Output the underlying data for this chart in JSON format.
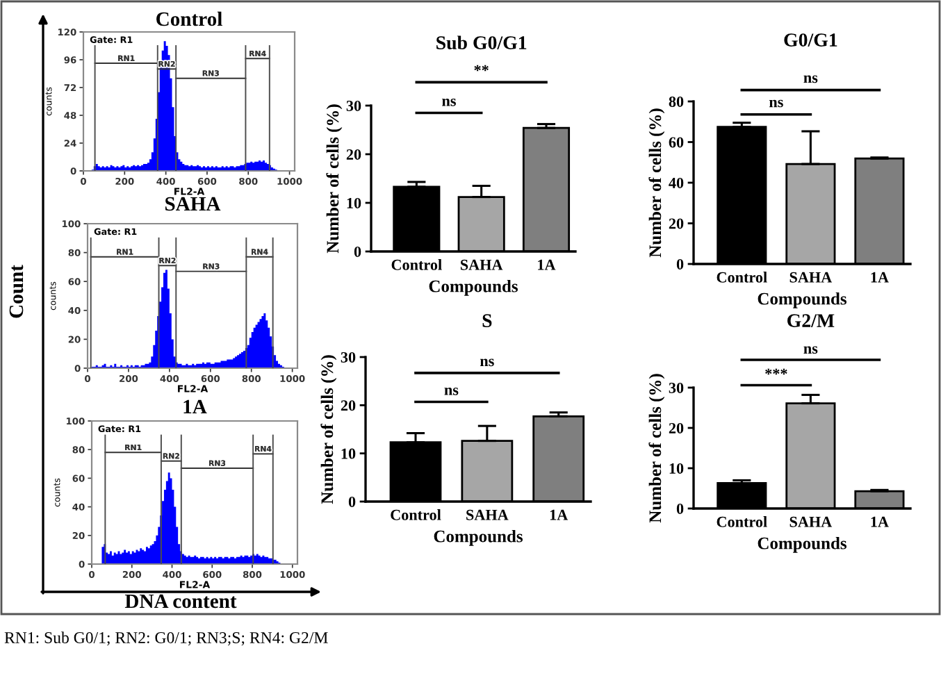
{
  "chart_data": [
    {
      "type": "histogram",
      "title": "Control",
      "xlabel": "FL2-A",
      "ylabel": "counts",
      "bins": [
        0,
        10,
        20,
        30,
        40,
        50,
        60,
        70,
        80,
        90,
        100,
        110,
        120,
        130,
        140,
        150,
        160,
        170,
        180,
        190,
        200,
        210,
        220,
        230,
        240,
        250,
        260,
        270,
        280,
        290,
        300,
        310,
        320,
        330,
        340,
        350,
        360,
        370,
        380,
        390,
        400,
        410,
        420,
        430,
        440,
        450,
        460,
        470,
        480,
        490,
        500,
        510,
        520,
        530,
        540,
        550,
        560,
        570,
        580,
        590,
        600,
        610,
        620,
        630,
        640,
        650,
        660,
        670,
        680,
        690,
        700,
        710,
        720,
        730,
        740,
        750,
        760,
        770,
        780,
        790,
        800,
        810,
        820,
        830,
        840,
        850,
        860,
        870,
        880,
        890,
        900,
        910,
        920,
        930,
        940,
        950,
        960,
        970,
        980,
        990,
        1000
      ],
      "series": [
        {
          "color": "#0000ff",
          "values": [
            0,
            0,
            0,
            0,
            1,
            4,
            6,
            4,
            3,
            4,
            3,
            4,
            3,
            5,
            4,
            3,
            4,
            3,
            4,
            5,
            3,
            4,
            3,
            4,
            5,
            4,
            5,
            4,
            5,
            6,
            6,
            7,
            10,
            16,
            28,
            45,
            68,
            90,
            104,
            112,
            108,
            100,
            80,
            55,
            30,
            16,
            10,
            8,
            6,
            5,
            5,
            4,
            5,
            4,
            4,
            5,
            4,
            3,
            4,
            3,
            4,
            3,
            4,
            3,
            4,
            3,
            3,
            4,
            3,
            4,
            3,
            4,
            4,
            3,
            4,
            4,
            5,
            5,
            6,
            7,
            7,
            8,
            7,
            8,
            8,
            9,
            8,
            9,
            7,
            6,
            5,
            3,
            2,
            1,
            0,
            0,
            0,
            0,
            0,
            0
          ]
        },
        {
          "type": "line",
          "name": "RN1",
          "color": "#333333",
          "x": [
            56,
            360
          ],
          "values": [
            93,
            93
          ]
        },
        {
          "type": "line",
          "name": "RN2",
          "color": "#333333",
          "x": [
            360,
            449
          ],
          "values": [
            88,
            88
          ]
        },
        {
          "type": "line",
          "name": "RN3",
          "color": "#333333",
          "x": [
            449,
            787
          ],
          "values": [
            80,
            80
          ]
        },
        {
          "type": "line",
          "name": "RN4",
          "color": "#333333",
          "x": [
            787,
            903
          ],
          "values": [
            97,
            97
          ]
        }
      ],
      "xlim": [
        0,
        1025
      ],
      "xticks": [
        0,
        200,
        400,
        600,
        800,
        1000
      ],
      "ylim": [
        0,
        120
      ],
      "yticks": [
        0,
        24,
        48,
        72,
        96,
        120
      ],
      "ref_lines": [
        {
          "axis": "x",
          "value": 56
        },
        {
          "axis": "x",
          "value": 360
        },
        {
          "axis": "x",
          "value": 449
        },
        {
          "axis": "x",
          "value": 787
        },
        {
          "axis": "x",
          "value": 903
        }
      ],
      "annotations": [
        "Gate: R1"
      ]
    },
    {
      "type": "histogram",
      "title": "SAHA",
      "xlabel": "FL2-A",
      "ylabel": "counts",
      "bins": [
        0,
        10,
        20,
        30,
        40,
        50,
        60,
        70,
        80,
        90,
        100,
        110,
        120,
        130,
        140,
        150,
        160,
        170,
        180,
        190,
        200,
        210,
        220,
        230,
        240,
        250,
        260,
        270,
        280,
        290,
        300,
        310,
        320,
        330,
        340,
        350,
        360,
        370,
        380,
        390,
        400,
        410,
        420,
        430,
        440,
        450,
        460,
        470,
        480,
        490,
        500,
        510,
        520,
        530,
        540,
        550,
        560,
        570,
        580,
        590,
        600,
        610,
        620,
        630,
        640,
        650,
        660,
        670,
        680,
        690,
        700,
        710,
        720,
        730,
        740,
        750,
        760,
        770,
        780,
        790,
        800,
        810,
        820,
        830,
        840,
        850,
        860,
        870,
        880,
        890,
        900,
        910,
        920,
        930,
        940,
        950,
        960,
        970,
        980,
        990,
        1000
      ],
      "series": [
        {
          "color": "#0000ff",
          "values": [
            0,
            0,
            1,
            1,
            2,
            1,
            1,
            2,
            3,
            1,
            1,
            2,
            1,
            3,
            1,
            1,
            2,
            1,
            1,
            2,
            1,
            2,
            1,
            2,
            2,
            1,
            2,
            2,
            3,
            3,
            4,
            8,
            16,
            26,
            36,
            46,
            56,
            66,
            68,
            55,
            38,
            20,
            8,
            4,
            3,
            3,
            2,
            2,
            3,
            2,
            2,
            3,
            2,
            3,
            3,
            3,
            4,
            3,
            4,
            4,
            3,
            3,
            4,
            4,
            4,
            5,
            5,
            5,
            6,
            6,
            6,
            7,
            8,
            9,
            10,
            11,
            12,
            14,
            16,
            21,
            25,
            28,
            30,
            32,
            34,
            36,
            38,
            33,
            28,
            22,
            15,
            9,
            5,
            3,
            2,
            1,
            0,
            0,
            0,
            0
          ]
        },
        {
          "type": "line",
          "name": "RN1",
          "color": "#333333",
          "x": [
            16,
            348
          ],
          "values": [
            77,
            77
          ]
        },
        {
          "type": "line",
          "name": "RN2",
          "color": "#333333",
          "x": [
            348,
            432
          ],
          "values": [
            71,
            71
          ]
        },
        {
          "type": "line",
          "name": "RN3",
          "color": "#333333",
          "x": [
            432,
            775
          ],
          "values": [
            67,
            67
          ]
        },
        {
          "type": "line",
          "name": "RN4",
          "color": "#333333",
          "x": [
            775,
            905
          ],
          "values": [
            77,
            77
          ]
        }
      ],
      "xlim": [
        0,
        1025
      ],
      "xticks": [
        0,
        200,
        400,
        600,
        800,
        1000
      ],
      "ylim": [
        0,
        100
      ],
      "yticks": [
        0,
        20,
        40,
        60,
        80,
        100
      ],
      "ref_lines": [
        {
          "axis": "x",
          "value": 16
        },
        {
          "axis": "x",
          "value": 348
        },
        {
          "axis": "x",
          "value": 432
        },
        {
          "axis": "x",
          "value": 775
        },
        {
          "axis": "x",
          "value": 905
        }
      ],
      "annotations": [
        "Gate: R1"
      ]
    },
    {
      "type": "histogram",
      "title": "1A",
      "xlabel": "FL2-A",
      "ylabel": "counts",
      "bins": [
        0,
        10,
        20,
        30,
        40,
        50,
        60,
        70,
        80,
        90,
        100,
        110,
        120,
        130,
        140,
        150,
        160,
        170,
        180,
        190,
        200,
        210,
        220,
        230,
        240,
        250,
        260,
        270,
        280,
        290,
        300,
        310,
        320,
        330,
        340,
        350,
        360,
        370,
        380,
        390,
        400,
        410,
        420,
        430,
        440,
        450,
        460,
        470,
        480,
        490,
        500,
        510,
        520,
        530,
        540,
        550,
        560,
        570,
        580,
        590,
        600,
        610,
        620,
        630,
        640,
        650,
        660,
        670,
        680,
        690,
        700,
        710,
        720,
        730,
        740,
        750,
        760,
        770,
        780,
        790,
        800,
        810,
        820,
        830,
        840,
        850,
        860,
        870,
        880,
        890,
        900,
        910,
        920,
        930,
        940,
        950,
        960,
        970,
        980,
        990,
        1000
      ],
      "series": [
        {
          "color": "#0000ff",
          "values": [
            0,
            0,
            0,
            0,
            0,
            12,
            14,
            8,
            7,
            9,
            6,
            8,
            7,
            9,
            7,
            8,
            10,
            8,
            9,
            7,
            9,
            8,
            10,
            9,
            11,
            10,
            9,
            12,
            11,
            13,
            14,
            16,
            20,
            26,
            34,
            44,
            52,
            58,
            64,
            60,
            52,
            40,
            26,
            14,
            9,
            7,
            6,
            5,
            6,
            5,
            5,
            6,
            5,
            4,
            5,
            5,
            4,
            5,
            4,
            5,
            4,
            5,
            4,
            5,
            5,
            4,
            5,
            5,
            4,
            5,
            5,
            4,
            5,
            5,
            6,
            5,
            6,
            6,
            5,
            6,
            7,
            6,
            7,
            6,
            5,
            6,
            5,
            5,
            4,
            4,
            3,
            3,
            2,
            1,
            0,
            0,
            0,
            0,
            0,
            0
          ]
        },
        {
          "type": "line",
          "name": "RN1",
          "color": "#333333",
          "x": [
            67,
            346
          ],
          "values": [
            78,
            78
          ]
        },
        {
          "type": "line",
          "name": "RN2",
          "color": "#333333",
          "x": [
            346,
            446
          ],
          "values": [
            72,
            72
          ]
        },
        {
          "type": "line",
          "name": "RN3",
          "color": "#333333",
          "x": [
            446,
            804
          ],
          "values": [
            67,
            67
          ]
        },
        {
          "type": "line",
          "name": "RN4",
          "color": "#333333",
          "x": [
            804,
            903
          ],
          "values": [
            77,
            77
          ]
        }
      ],
      "xlim": [
        0,
        1025
      ],
      "xticks": [
        0,
        200,
        400,
        600,
        800,
        1000
      ],
      "ylim": [
        0,
        100
      ],
      "yticks": [
        0,
        20,
        40,
        60,
        80,
        100
      ],
      "ref_lines": [
        {
          "axis": "x",
          "value": 67
        },
        {
          "axis": "x",
          "value": 346
        },
        {
          "axis": "x",
          "value": 446
        },
        {
          "axis": "x",
          "value": 804
        },
        {
          "axis": "x",
          "value": 903
        }
      ],
      "annotations": [
        "Gate: R1"
      ]
    },
    {
      "type": "bar",
      "title": "Sub G0/G1",
      "xlabel": "Compounds",
      "ylabel": "Number of cells (%)",
      "categories": [
        "Control",
        "SAHA",
        "1A"
      ],
      "values": [
        13.3,
        11.2,
        25.4
      ],
      "colors": [
        "#000000",
        "#a6a6a6",
        "#7f7f7f"
      ],
      "errors": [
        [
          13.3,
          14.3
        ],
        [
          11.2,
          13.5
        ],
        [
          25.4,
          26.2
        ]
      ],
      "ylim": [
        0,
        30
      ],
      "yticks": [
        0,
        10,
        20,
        30
      ],
      "annotations": [
        "ns",
        "**"
      ]
    },
    {
      "type": "bar",
      "title": "G0/G1",
      "xlabel": "Compounds",
      "ylabel": "Number of cells (%)",
      "categories": [
        "Control",
        "SAHA",
        "1A"
      ],
      "values": [
        67.5,
        49.2,
        51.9
      ],
      "colors": [
        "#000000",
        "#a6a6a6",
        "#7f7f7f"
      ],
      "errors": [
        [
          67.5,
          69.5
        ],
        [
          49.2,
          65.3
        ],
        [
          51.9,
          52.4
        ]
      ],
      "ylim": [
        0,
        80
      ],
      "yticks": [
        0,
        20,
        40,
        60,
        80
      ],
      "annotations": [
        "ns",
        "ns"
      ]
    },
    {
      "type": "bar",
      "title": "S",
      "xlabel": "Compounds",
      "ylabel": "Number of cells (%)",
      "categories": [
        "Control",
        "SAHA",
        "1A"
      ],
      "values": [
        12.3,
        12.6,
        17.7
      ],
      "colors": [
        "#000000",
        "#a6a6a6",
        "#7f7f7f"
      ],
      "errors": [
        [
          12.3,
          14.2
        ],
        [
          12.6,
          15.7
        ],
        [
          17.7,
          18.5
        ]
      ],
      "ylim": [
        0,
        30
      ],
      "yticks": [
        0,
        10,
        20,
        30
      ],
      "annotations": [
        "ns",
        "ns"
      ]
    },
    {
      "type": "bar",
      "title": "G2/M",
      "xlabel": "Compounds",
      "ylabel": "Number of cells (%)",
      "categories": [
        "Control",
        "SAHA",
        "1A"
      ],
      "values": [
        6.3,
        26.1,
        4.3
      ],
      "colors": [
        "#000000",
        "#a6a6a6",
        "#7f7f7f"
      ],
      "errors": [
        [
          6.3,
          7.0
        ],
        [
          26.1,
          28.2
        ],
        [
          4.3,
          4.6
        ]
      ],
      "ylim": [
        0,
        30
      ],
      "yticks": [
        0,
        10,
        20,
        30
      ],
      "annotations": [
        "***",
        "ns"
      ]
    },
    {
      "type": "other",
      "xlabel": "DNA content",
      "ylabel": "Count",
      "annotations": [
        "RN1: Sub G0/1; RN2: G0/1; RN3;S; RN4: G2/M"
      ]
    }
  ]
}
